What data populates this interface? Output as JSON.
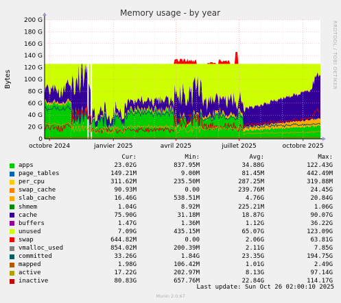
{
  "chart_data": {
    "type": "area",
    "title": "Memory usage - by year",
    "ylabel": "Bytes",
    "ylim": [
      0,
      200
    ],
    "yticks": [
      "0",
      "20 G",
      "40 G",
      "60 G",
      "80 G",
      "100 G",
      "120 G",
      "140 G",
      "160 G",
      "180 G",
      "200 G"
    ],
    "x_start": "2024-09-24",
    "x_end": "2025-10-26",
    "xticks": [
      {
        "date": "2024-10-01",
        "label": "octobre 2024"
      },
      {
        "date": "2025-01-01",
        "label": "janvier 2025"
      },
      {
        "date": "2025-04-01",
        "label": "avril 2025"
      },
      {
        "date": "2025-07-01",
        "label": "juillet 2025"
      },
      {
        "date": "2025-10-01",
        "label": "octobre 2025"
      }
    ],
    "grid": true,
    "legend_columns": [
      "Cur:",
      "Min:",
      "Avg:",
      "Max:"
    ],
    "series": [
      {
        "name": "apps",
        "color": "#00cc00",
        "cur": "23.02G",
        "min": "837.95M",
        "avg": "34.88G",
        "max": "122.43G"
      },
      {
        "name": "page_tables",
        "color": "#0066b3",
        "cur": "149.21M",
        "min": "9.00M",
        "avg": "81.45M",
        "max": "442.49M"
      },
      {
        "name": "per_cpu",
        "color": "#ffcc00",
        "cur": "311.62M",
        "min": "235.50M",
        "avg": "287.25M",
        "max": "319.88M"
      },
      {
        "name": "swap_cache",
        "color": "#ff8000",
        "cur": "90.93M",
        "min": "0.00",
        "avg": "239.76M",
        "max": "24.45G"
      },
      {
        "name": "slab_cache",
        "color": "#ffaa00",
        "cur": "16.46G",
        "min": "538.51M",
        "avg": "4.76G",
        "max": "20.84G"
      },
      {
        "name": "shmem",
        "color": "#008f00",
        "cur": "1.04G",
        "min": "8.92M",
        "avg": "225.21M",
        "max": "1.06G"
      },
      {
        "name": "cache",
        "color": "#330099",
        "cur": "75.90G",
        "min": "31.18M",
        "avg": "18.87G",
        "max": "90.07G"
      },
      {
        "name": "buffers",
        "color": "#990099",
        "cur": "1.47G",
        "min": "1.36M",
        "avg": "1.12G",
        "max": "36.22G"
      },
      {
        "name": "unused",
        "color": "#ccff00",
        "cur": "7.09G",
        "min": "435.15M",
        "avg": "65.07G",
        "max": "123.09G"
      },
      {
        "name": "swap",
        "color": "#ff0000",
        "cur": "644.82M",
        "min": "0.00",
        "avg": "2.06G",
        "max": "63.81G"
      },
      {
        "name": "vmalloc_used",
        "color": "#808080",
        "cur": "854.02M",
        "min": "200.39M",
        "avg": "2.11G",
        "max": "7.85G"
      },
      {
        "name": "committed",
        "color": "#005e5e",
        "cur": "33.26G",
        "min": "1.84G",
        "avg": "23.35G",
        "max": "194.75G"
      },
      {
        "name": "mapped",
        "color": "#b35900",
        "cur": "1.98G",
        "min": "106.42M",
        "avg": "1.01G",
        "max": "2.49G"
      },
      {
        "name": "active",
        "color": "#b3a000",
        "cur": "17.22G",
        "min": "202.97M",
        "avg": "8.13G",
        "max": "97.14G"
      },
      {
        "name": "inactive",
        "color": "#cc0000",
        "cur": "80.83G",
        "min": "657.76M",
        "avg": "22.84G",
        "max": "114.17G"
      }
    ]
  },
  "watermark": "RRDTOOL / TOBI OETIKER",
  "footer": {
    "last_update": "Last update:  Sun Oct 26 02:00:10 2025",
    "version": "Munin 2.0.67"
  }
}
